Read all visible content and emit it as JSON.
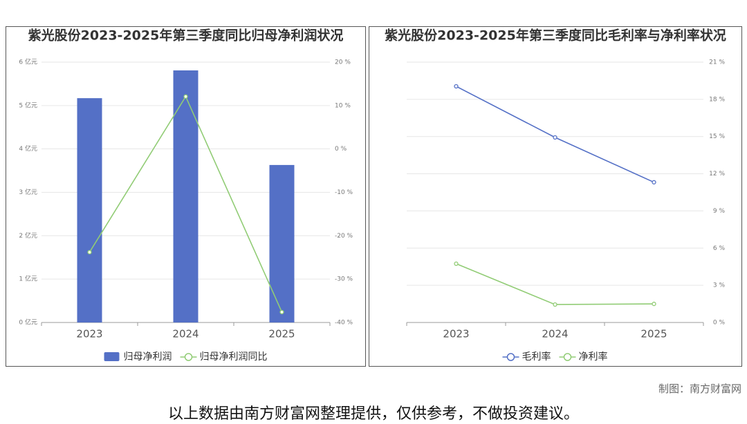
{
  "chart_data": [
    {
      "type": "bar",
      "title": "紫光股份2023-2025年第三季度同比归母净利润状况",
      "categories": [
        "2023",
        "2024",
        "2025"
      ],
      "series": [
        {
          "name": "归母净利润",
          "type": "bar",
          "color": "#5470c6",
          "values": [
            5.17,
            5.81,
            3.63
          ]
        },
        {
          "name": "归母净利润同比",
          "type": "line",
          "axis": "y2",
          "color": "#91cc75",
          "values": [
            -23.8,
            12.07,
            -37.6
          ]
        }
      ],
      "ylim": [
        0,
        6
      ],
      "yticks": [
        {
          "value": 0,
          "label": "0 亿元"
        },
        {
          "value": 1,
          "label": "1 亿元"
        },
        {
          "value": 2,
          "label": "2 亿元"
        },
        {
          "value": 3,
          "label": "3 亿元"
        },
        {
          "value": 4,
          "label": "4 亿元"
        },
        {
          "value": 5,
          "label": "5 亿元"
        },
        {
          "value": 6,
          "label": "6 亿元"
        }
      ],
      "y2lim": [
        -40,
        20
      ],
      "y2ticks": [
        {
          "value": -40,
          "label": "-40 %"
        },
        {
          "value": -30,
          "label": "-30 %"
        },
        {
          "value": -20,
          "label": "-20 %"
        },
        {
          "value": -10,
          "label": "-10 %"
        },
        {
          "value": 0,
          "label": "0 %"
        },
        {
          "value": 10,
          "label": "10 %"
        },
        {
          "value": 20,
          "label": "20 %"
        }
      ],
      "grid": true
    },
    {
      "type": "line",
      "title": "紫光股份2023-2025年第三季度同比毛利率与净利率状况",
      "categories": [
        "2023",
        "2024",
        "2025"
      ],
      "series": [
        {
          "name": "毛利率",
          "color": "#5470c6",
          "values": [
            19.05,
            14.93,
            11.31
          ]
        },
        {
          "name": "净利率",
          "color": "#91cc75",
          "values": [
            4.74,
            1.45,
            1.5
          ]
        }
      ],
      "ylim": [
        0,
        21
      ],
      "yticks": [
        {
          "value": 0,
          "label": "0 %"
        },
        {
          "value": 3,
          "label": "3 %"
        },
        {
          "value": 6,
          "label": "6 %"
        },
        {
          "value": 9,
          "label": "9 %"
        },
        {
          "value": 12,
          "label": "12 %"
        },
        {
          "value": 15,
          "label": "15 %"
        },
        {
          "value": 18,
          "label": "18 %"
        },
        {
          "value": 21,
          "label": "21 %"
        }
      ],
      "grid": true
    }
  ],
  "footer": {
    "credit": "制图：南方财富网",
    "disclaimer": "以上数据由南方财富网整理提供，仅供参考，不做投资建议。"
  }
}
